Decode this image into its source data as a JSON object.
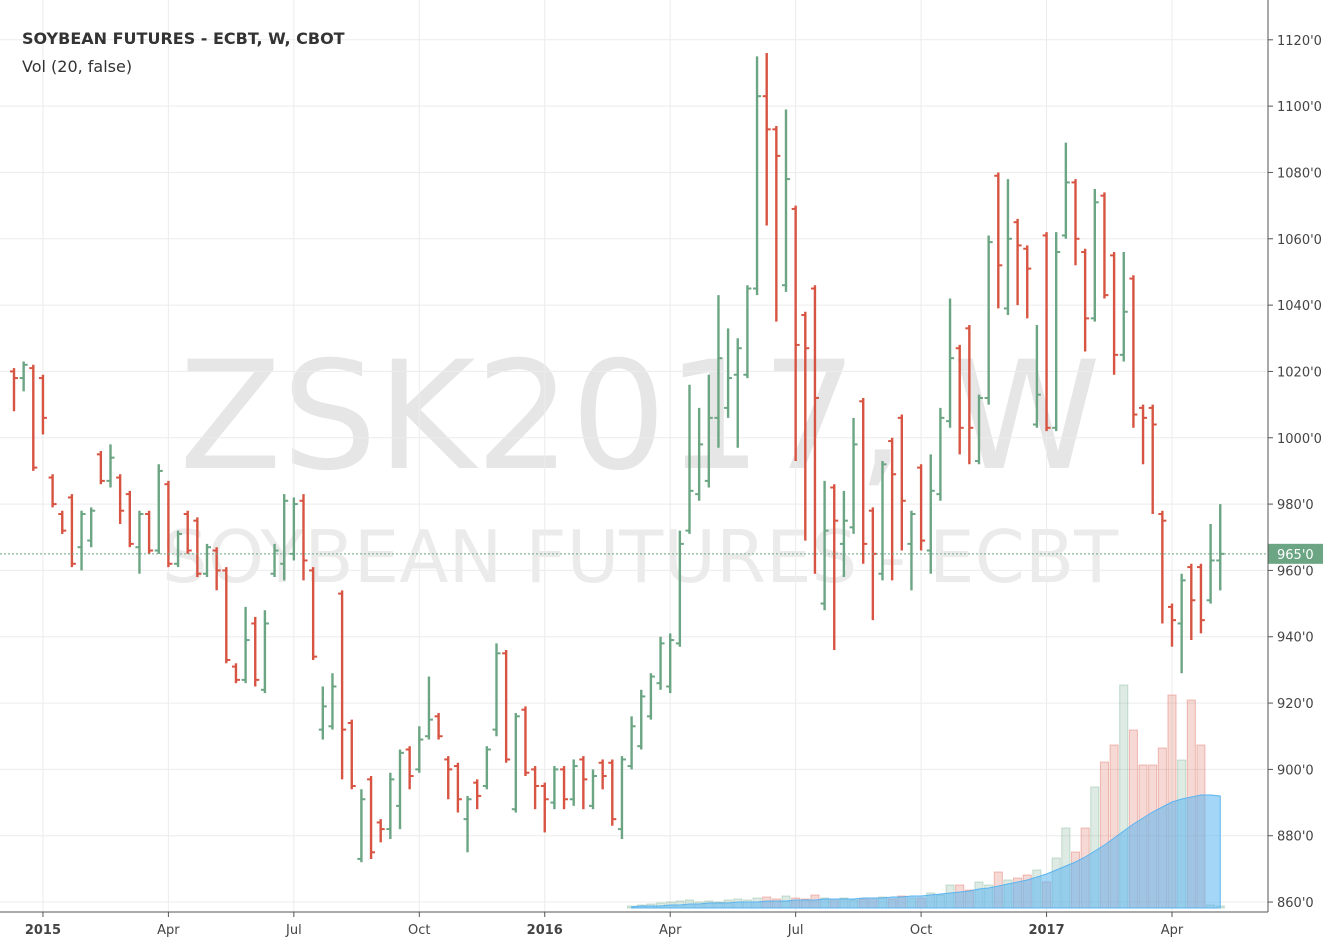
{
  "chart_data": {
    "type": "ohlc",
    "title": "SOYBEAN FUTURES - ECBT, W, CBOT",
    "subtitle": "Vol (20, false)",
    "watermark": "ZSK2017, W",
    "watermark_subtitle": "SOYBEAN FUTURES - ECBT",
    "up_color": "#6ba583",
    "down_color": "#d75442",
    "volume_ma_color": "#5ab4f0",
    "grid": true,
    "categories": [
      null,
      null,
      null,
      "2015",
      null,
      null,
      null,
      null,
      null,
      null,
      null,
      null,
      null,
      null,
      null,
      null,
      "Apr",
      null,
      null,
      null,
      null,
      null,
      null,
      null,
      null,
      null,
      null,
      null,
      null,
      "Jul",
      null,
      null,
      null,
      null,
      null,
      null,
      null,
      null,
      null,
      null,
      null,
      null,
      "Oct",
      null,
      null,
      null,
      null,
      null,
      null,
      null,
      null,
      null,
      null,
      null,
      null,
      "2016",
      null,
      null,
      null,
      null,
      null,
      null,
      null,
      null,
      null,
      null,
      null,
      null,
      "Apr",
      null,
      null,
      null,
      null,
      null,
      null,
      null,
      null,
      null,
      null,
      null,
      null,
      "Jul",
      null,
      null,
      null,
      null,
      null,
      null,
      null,
      null,
      null,
      null,
      null,
      null,
      "Oct",
      null,
      null,
      null,
      null,
      null,
      null,
      null,
      null,
      null,
      null,
      null,
      null,
      "2017",
      null,
      null,
      null,
      null,
      null,
      null,
      null,
      null,
      null,
      null,
      null,
      null,
      "Apr",
      null,
      null,
      null,
      null,
      null
    ],
    "open": [
      1020,
      1018,
      1021,
      1018,
      988,
      977,
      982,
      967,
      969,
      995,
      987,
      988,
      983,
      967,
      977,
      966,
      986,
      962,
      977,
      975,
      959,
      966,
      960,
      931,
      927,
      944,
      924,
      959,
      962,
      965,
      981,
      960,
      912,
      913,
      953,
      914,
      873,
      897,
      884,
      882,
      889,
      906,
      900,
      910,
      916,
      903,
      901,
      885,
      896,
      895,
      912,
      935,
      888,
      918,
      900,
      895,
      890,
      900,
      891,
      903,
      889,
      902,
      902,
      882,
      901,
      907,
      916,
      926,
      925,
      938,
      972,
      983,
      987,
      1006,
      1009,
      1019,
      1019,
      1045,
      1103,
      1093,
      1046,
      1069,
      1037,
      1045,
      950,
      985,
      968,
      973,
      1011,
      978,
      959,
      999,
      1006,
      968,
      991,
      966,
      983,
      1005,
      1027,
      1033,
      993,
      1012,
      1079,
      1039,
      1065,
      1057,
      1004,
      1061,
      1003,
      1061,
      1077,
      1056,
      1036,
      1073,
      1055,
      1025,
      1048,
      1009,
      1009,
      977,
      949,
      944,
      961,
      961,
      951,
      963
    ],
    "high": [
      1021,
      1023,
      1022,
      1019,
      989,
      978,
      983,
      978,
      979,
      996,
      998,
      989,
      984,
      978,
      978,
      992,
      987,
      972,
      978,
      976,
      968,
      967,
      961,
      932,
      949,
      946,
      948,
      968,
      983,
      982,
      983,
      961,
      925,
      929,
      954,
      915,
      894,
      898,
      885,
      899,
      906,
      907,
      913,
      928,
      917,
      904,
      902,
      892,
      897,
      907,
      938,
      936,
      917,
      919,
      901,
      896,
      901,
      901,
      903,
      904,
      900,
      903,
      903,
      904,
      916,
      924,
      929,
      940,
      941,
      972,
      1016,
      1009,
      1019,
      1043,
      1033,
      1030,
      1046,
      1115,
      1116,
      1094,
      1099,
      1070,
      1038,
      1046,
      987,
      986,
      984,
      1006,
      1012,
      979,
      993,
      1000,
      1007,
      978,
      992,
      995,
      1009,
      1042,
      1028,
      1034,
      1013,
      1061,
      1080,
      1078,
      1066,
      1058,
      1034,
      1062,
      1062,
      1089,
      1078,
      1057,
      1075,
      1074,
      1056,
      1056,
      1049,
      1010,
      1010,
      978,
      950,
      959,
      962,
      962,
      974,
      980
    ],
    "low": [
      1008,
      1014,
      990,
      1001,
      979,
      971,
      961,
      960,
      967,
      986,
      985,
      974,
      967,
      959,
      965,
      965,
      961,
      961,
      965,
      958,
      958,
      954,
      932,
      926,
      926,
      925,
      923,
      958,
      957,
      963,
      957,
      933,
      909,
      912,
      897,
      894,
      872,
      873,
      878,
      879,
      882,
      894,
      899,
      909,
      909,
      891,
      887,
      875,
      888,
      894,
      910,
      902,
      887,
      898,
      888,
      881,
      888,
      888,
      889,
      888,
      888,
      894,
      883,
      879,
      900,
      906,
      915,
      924,
      923,
      937,
      971,
      981,
      985,
      997,
      1006,
      997,
      1018,
      1043,
      1064,
      1035,
      1044,
      993,
      969,
      959,
      948,
      936,
      958,
      971,
      962,
      945,
      957,
      957,
      966,
      954,
      966,
      959,
      981,
      1003,
      995,
      992,
      992,
      1010,
      1039,
      1037,
      1040,
      1036,
      1003,
      1002,
      1002,
      1060,
      1052,
      1026,
      1035,
      1042,
      1019,
      1023,
      1003,
      992,
      977,
      944,
      937,
      929,
      939,
      941,
      950,
      954
    ],
    "close": [
      1018,
      1022,
      991,
      1006,
      980,
      972,
      962,
      977,
      978,
      987,
      994,
      978,
      968,
      977,
      966,
      990,
      962,
      971,
      966,
      959,
      967,
      960,
      933,
      927,
      939,
      927,
      944,
      966,
      981,
      980,
      963,
      934,
      919,
      925,
      912,
      895,
      891,
      875,
      882,
      897,
      905,
      898,
      909,
      915,
      910,
      900,
      891,
      891,
      892,
      906,
      935,
      903,
      916,
      899,
      895,
      891,
      900,
      891,
      901,
      897,
      898,
      898,
      885,
      903,
      913,
      922,
      928,
      938,
      939,
      968,
      984,
      998,
      1006,
      1024,
      1018,
      1027,
      1045,
      1103,
      1093,
      1085,
      1078,
      1028,
      1027,
      1012,
      972,
      975,
      975,
      998,
      968,
      965,
      992,
      989,
      981,
      977,
      969,
      984,
      1006,
      1024,
      1003,
      1003,
      1012,
      1059,
      1052,
      1060,
      1058,
      1051,
      1013,
      1003,
      1056,
      1077,
      1060,
      1036,
      1071,
      1043,
      1025,
      1038,
      1007,
      1006,
      1004,
      975,
      945,
      957,
      951,
      945,
      963,
      965
    ],
    "volume": [
      null,
      null,
      null,
      null,
      null,
      null,
      null,
      null,
      null,
      null,
      null,
      null,
      null,
      null,
      null,
      null,
      null,
      null,
      null,
      null,
      null,
      null,
      null,
      null,
      null,
      null,
      null,
      null,
      null,
      null,
      null,
      null,
      null,
      null,
      null,
      null,
      null,
      null,
      null,
      null,
      null,
      null,
      null,
      null,
      null,
      null,
      null,
      null,
      null,
      null,
      null,
      null,
      null,
      null,
      null,
      null,
      null,
      null,
      null,
      null,
      null,
      null,
      null,
      null,
      2,
      3,
      4,
      5,
      6,
      7,
      8,
      6,
      7,
      6,
      8,
      9,
      8,
      10,
      11,
      9,
      12,
      10,
      9,
      13,
      10,
      9,
      10,
      8,
      9,
      10,
      11,
      9,
      12,
      10,
      10,
      15,
      13,
      23,
      23,
      18,
      26,
      23,
      36,
      28,
      30,
      33,
      38,
      26,
      50,
      80,
      56,
      80,
      121,
      146,
      163,
      223,
      178,
      143,
      143,
      160,
      213,
      148,
      208,
      163,
      3,
      2
    ],
    "volume_ma": [
      null,
      null,
      null,
      null,
      null,
      null,
      null,
      null,
      null,
      null,
      null,
      null,
      null,
      null,
      null,
      null,
      null,
      null,
      null,
      null,
      null,
      null,
      null,
      null,
      null,
      null,
      null,
      null,
      null,
      null,
      null,
      null,
      null,
      null,
      null,
      null,
      null,
      null,
      null,
      null,
      null,
      null,
      null,
      null,
      null,
      null,
      null,
      null,
      null,
      null,
      null,
      null,
      null,
      null,
      null,
      null,
      null,
      null,
      null,
      null,
      null,
      null,
      null,
      null,
      1,
      2,
      2,
      2,
      3,
      3,
      4,
      4,
      5,
      5,
      5,
      6,
      6,
      6,
      7,
      7,
      7,
      8,
      8,
      8,
      9,
      9,
      9,
      9,
      10,
      10,
      10,
      11,
      11,
      12,
      12,
      13,
      14,
      15,
      16,
      17,
      19,
      20,
      22,
      24,
      26,
      28,
      31,
      34,
      38,
      42,
      46,
      51,
      57,
      63,
      70,
      77,
      84,
      90,
      96,
      101,
      106,
      109,
      111,
      113,
      113,
      112
    ],
    "last_price": {
      "value": 965,
      "label": "965'0"
    },
    "ylim": [
      857,
      1132
    ],
    "yticks": [
      {
        "value": 860,
        "label": "860'0"
      },
      {
        "value": 880,
        "label": "880'0"
      },
      {
        "value": 900,
        "label": "900'0"
      },
      {
        "value": 920,
        "label": "920'0"
      },
      {
        "value": 940,
        "label": "940'0"
      },
      {
        "value": 960,
        "label": "960'0"
      },
      {
        "value": 980,
        "label": "980'0"
      },
      {
        "value": 1000,
        "label": "1000'0"
      },
      {
        "value": 1020,
        "label": "1020'0"
      },
      {
        "value": 1040,
        "label": "1040'0"
      },
      {
        "value": 1060,
        "label": "1060'0"
      },
      {
        "value": 1080,
        "label": "1080'0"
      },
      {
        "value": 1100,
        "label": "1100'0"
      },
      {
        "value": 1120,
        "label": "1120'0"
      }
    ]
  }
}
